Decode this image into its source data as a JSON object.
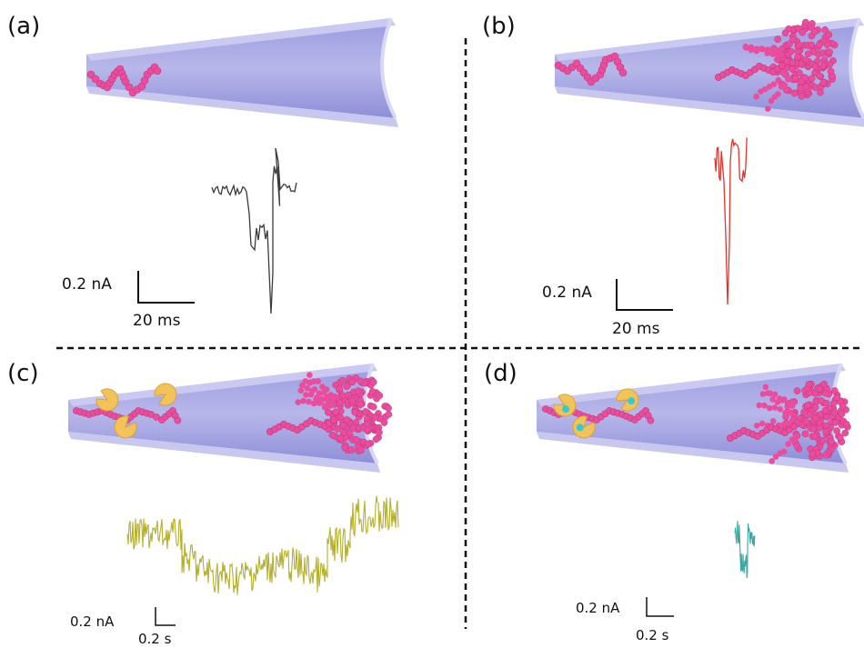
{
  "panels": [
    {
      "label": "(a)",
      "scale_y": "0.2 nA",
      "scale_x": "20 ms",
      "trace_color": "#3a3a3a"
    },
    {
      "label": "(b)",
      "scale_y": "0.2 nA",
      "scale_x": "20 ms",
      "trace_color": "#e5322d"
    },
    {
      "label": "(c)",
      "scale_y": "0.2 nA",
      "scale_x": "0.2 s",
      "trace_color": "#b5b02c"
    },
    {
      "label": "(d)",
      "scale_y": "0.2 nA",
      "scale_x": "0.2 s",
      "trace_color": "#3aa7a3"
    }
  ],
  "colors": {
    "nanopore": "#b7b7ea",
    "strand": "#e94d9c",
    "protein": "#f2c35a",
    "dye": "#35c9d4",
    "divider": "#111111"
  }
}
